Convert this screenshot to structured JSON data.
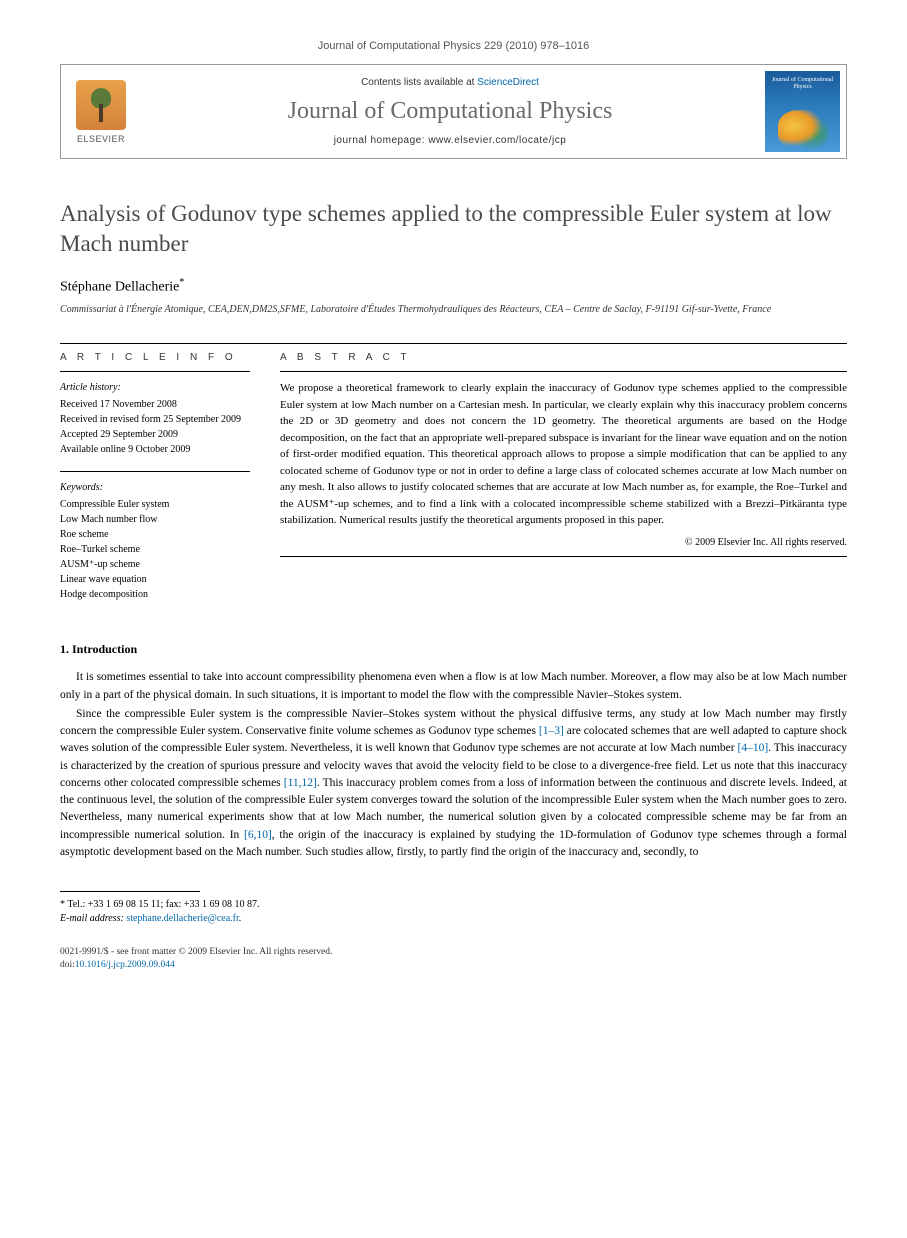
{
  "journal_reference": "Journal of Computational Physics 229 (2010) 978–1016",
  "header": {
    "elsevier": "ELSEVIER",
    "contents_prefix": "Contents lists available at ",
    "sciencedirect": "ScienceDirect",
    "journal_name": "Journal of Computational Physics",
    "homepage_prefix": "journal homepage: ",
    "homepage_url": "www.elsevier.com/locate/jcp",
    "cover_title": "Journal of Computational Physics"
  },
  "title": "Analysis of Godunov type schemes applied to the compressible Euler system at low Mach number",
  "author": "Stéphane Dellacherie",
  "author_marker": "*",
  "affiliation": "Commissariat à l'Énergie Atomique, CEA,DEN,DM2S,SFME, Laboratoire d'Études Thermohydrauliques des Réacteurs, CEA – Centre de Saclay, F-91191 Gif-sur-Yvette, France",
  "info": {
    "label": "A R T I C L E   I N F O",
    "history_title": "Article history:",
    "received": "Received 17 November 2008",
    "revised": "Received in revised form 25 September 2009",
    "accepted": "Accepted 29 September 2009",
    "online": "Available online 9 October 2009",
    "keywords_title": "Keywords:",
    "kw1": "Compressible Euler system",
    "kw2": "Low Mach number flow",
    "kw3": "Roe scheme",
    "kw4": "Roe–Turkel scheme",
    "kw5": "AUSM⁺-up scheme",
    "kw6": "Linear wave equation",
    "kw7": "Hodge decomposition"
  },
  "abstract": {
    "label": "A B S T R A C T",
    "text": "We propose a theoretical framework to clearly explain the inaccuracy of Godunov type schemes applied to the compressible Euler system at low Mach number on a Cartesian mesh. In particular, we clearly explain why this inaccuracy problem concerns the 2D or 3D geometry and does not concern the 1D geometry. The theoretical arguments are based on the Hodge decomposition, on the fact that an appropriate well-prepared subspace is invariant for the linear wave equation and on the notion of first-order modified equation. This theoretical approach allows to propose a simple modification that can be applied to any colocated scheme of Godunov type or not in order to define a large class of colocated schemes accurate at low Mach number on any mesh. It also allows to justify colocated schemes that are accurate at low Mach number as, for example, the Roe–Turkel and the AUSM⁺-up schemes, and to find a link with a colocated incompressible scheme stabilized with a Brezzi–Pitkäranta type stabilization. Numerical results justify the theoretical arguments proposed in this paper.",
    "copyright": "© 2009 Elsevier Inc. All rights reserved."
  },
  "intro": {
    "heading": "1. Introduction",
    "p1": "It is sometimes essential to take into account compressibility phenomena even when a flow is at low Mach number. Moreover, a flow may also be at low Mach number only in a part of the physical domain. In such situations, it is important to model the flow with the compressible Navier–Stokes system.",
    "p2a": "Since the compressible Euler system is the compressible Navier–Stokes system without the physical diffusive terms, any study at low Mach number may firstly concern the compressible Euler system. Conservative finite volume schemes as Godunov type schemes ",
    "ref1": "[1–3]",
    "p2b": " are colocated schemes that are well adapted to capture shock waves solution of the compressible Euler system. Nevertheless, it is well known that Godunov type schemes are not accurate at low Mach number ",
    "ref2": "[4–10]",
    "p2c": ". This inaccuracy is characterized by the creation of spurious pressure and velocity waves that avoid the velocity field to be close to a divergence-free field. Let us note that this inaccuracy concerns other colocated compressible schemes ",
    "ref3": "[11,12]",
    "p2d": ". This inaccuracy problem comes from a loss of information between the continuous and discrete levels. Indeed, at the continuous level, the solution of the compressible Euler system converges toward the solution of the incompressible Euler system when the Mach number goes to zero. Nevertheless, many numerical experiments show that at low Mach number, the numerical solution given by a colocated compressible scheme may be far from an incompressible numerical solution. In ",
    "ref4": "[6,10]",
    "p2e": ", the origin of the inaccuracy is explained by studying the 1D-formulation of Godunov type schemes through a formal asymptotic development based on the Mach number. Such studies allow, firstly, to partly find the origin of the inaccuracy and, secondly, to"
  },
  "footnote": {
    "tel": "* Tel.: +33 1 69 08 15 11; fax: +33 1 69 08 10 87.",
    "email_label": "E-mail address:",
    "email": "stephane.dellacherie@cea.fr",
    "email_suffix": "."
  },
  "bottom": {
    "line1": "0021-9991/$ - see front matter © 2009 Elsevier Inc. All rights reserved.",
    "doi_prefix": "doi:",
    "doi": "10.1016/j.jcp.2009.09.044"
  }
}
